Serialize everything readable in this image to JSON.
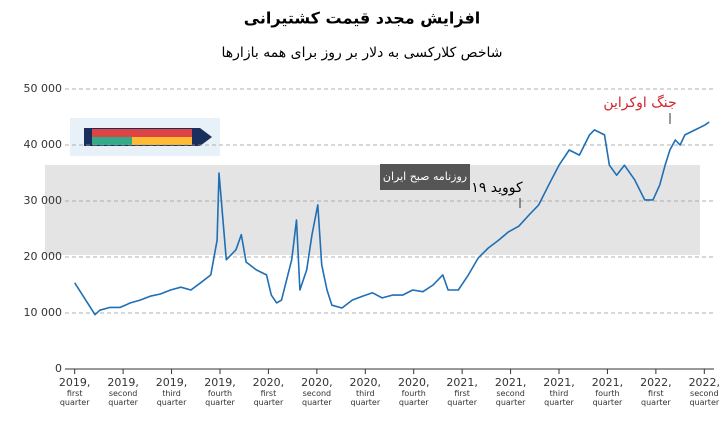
{
  "chart_data": {
    "type": "line",
    "title": "افزایش مجدد قیمت کشتیرانی",
    "subtitle": "شاخص کلارکسی به دلار بر روز برای همه بازارها",
    "annotations": [
      "جنگ اوکراین",
      "کووید ۱۹"
    ],
    "watermark": "روزنامه صبح ایران",
    "x": [
      0,
      0.31,
      0.42,
      0.52,
      0.73,
      0.94,
      1.15,
      1.35,
      1.56,
      1.77,
      1.98,
      2.19,
      2.4,
      2.6,
      2.81,
      2.94,
      2.98,
      3.13,
      3.33,
      3.44,
      3.54,
      3.75,
      3.96,
      4.06,
      4.17,
      4.27,
      4.48,
      4.58,
      4.65,
      4.79,
      4.9,
      5.02,
      5.1,
      5.21,
      5.31,
      5.52,
      5.73,
      5.94,
      6.15,
      6.35,
      6.56,
      6.77,
      6.98,
      7.19,
      7.4,
      7.6,
      7.71,
      7.92,
      8.13,
      8.33,
      8.54,
      8.75,
      8.96,
      9.17,
      9.38,
      9.58,
      9.79,
      10,
      10.21,
      10.42,
      10.63,
      10.73,
      10.94,
      11.04,
      11.19,
      11.35,
      11.56,
      11.77,
      11.94,
      12.08,
      12.19,
      12.29,
      12.4,
      12.5,
      12.6,
      12.81,
      13.02,
      13.1
    ],
    "series": [
      {
        "name": "Clarksea",
        "color": "#1f6fb5",
        "values": [
          15400,
          11200,
          9700,
          10500,
          11000,
          11000,
          11800,
          12300,
          13000,
          13400,
          14100,
          14600,
          14100,
          15400,
          16800,
          23000,
          35000,
          19500,
          21300,
          24000,
          19100,
          17700,
          16800,
          13200,
          11800,
          12300,
          19500,
          26600,
          14100,
          17700,
          24000,
          29300,
          18600,
          14100,
          11400,
          10900,
          12300,
          13000,
          13600,
          12700,
          13200,
          13200,
          14100,
          13800,
          15000,
          16800,
          14100,
          14100,
          16800,
          19800,
          21600,
          23000,
          24500,
          25500,
          27500,
          29300,
          32900,
          36400,
          39100,
          38200,
          41800,
          42700,
          41800,
          36400,
          34600,
          36400,
          33800,
          30200,
          30200,
          32900,
          36400,
          39100,
          40900,
          40000,
          41800,
          42700,
          43600,
          44100
        ]
      }
    ],
    "xlim": [
      -0.2,
      13.2
    ],
    "xticks": [
      {
        "value": 0,
        "label": "2019,\nfirst\nquarter"
      },
      {
        "value": 1,
        "label": "2019,\nsecond\nquarter"
      },
      {
        "value": 2,
        "label": "2019,\nthird\nquarter"
      },
      {
        "value": 3,
        "label": "2019,\nfourth\nquarter"
      },
      {
        "value": 4,
        "label": "2020,\nfirst\nquarter"
      },
      {
        "value": 5,
        "label": "2020,\nsecond\nquarter"
      },
      {
        "value": 6,
        "label": "2020,\nthird\nquarter"
      },
      {
        "value": 7,
        "label": "2020,\nfourth\nquarter"
      },
      {
        "value": 8,
        "label": "2021,\nfirst\nquarter"
      },
      {
        "value": 9,
        "label": "2021,\nsecond\nquarter"
      },
      {
        "value": 10,
        "label": "2021,\nthird\nquarter"
      },
      {
        "value": 11,
        "label": "2021,\nfourth\nquarter"
      },
      {
        "value": 12,
        "label": "2022,\nfirst\nquarter"
      },
      {
        "value": 13,
        "label": "2022,\nsecond\nquarter"
      }
    ],
    "ylim": [
      0,
      50000
    ],
    "yticks": [
      0,
      {
        "value": 10000,
        "label": "10 000"
      },
      {
        "value": 20000,
        "label": "20 000"
      },
      {
        "value": 30000,
        "label": "30 000"
      },
      {
        "value": 40000,
        "label": "40 000"
      },
      {
        "value": 50000,
        "label": "50 000"
      }
    ],
    "grid": true
  }
}
